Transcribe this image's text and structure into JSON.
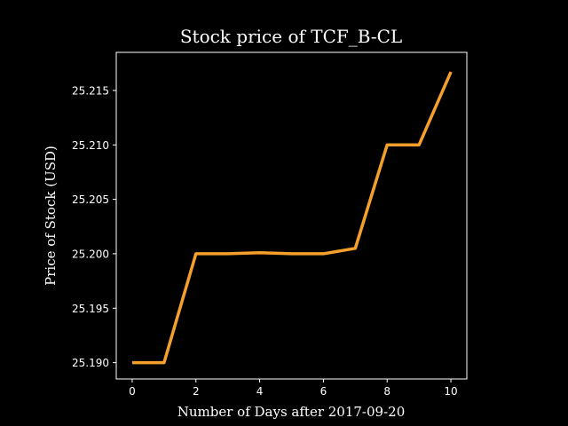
{
  "colors": {
    "background": "#000000",
    "axes": "#ffffff",
    "line": "#f5a02a",
    "text": "#ffffff"
  },
  "chart_data": {
    "type": "line",
    "title": "Stock price of TCF_B-CL",
    "xlabel": "Number of Days after 2017-09-20",
    "ylabel": "Price of Stock (USD)",
    "xlim": [
      -0.5,
      10.5
    ],
    "ylim": [
      25.1885,
      25.2185
    ],
    "xticks": [
      0,
      2,
      4,
      6,
      8,
      10
    ],
    "xtick_labels": [
      "0",
      "2",
      "4",
      "6",
      "8",
      "10"
    ],
    "yticks": [
      25.19,
      25.195,
      25.2,
      25.205,
      25.21,
      25.215
    ],
    "ytick_labels": [
      "25.190",
      "25.195",
      "25.200",
      "25.205",
      "25.210",
      "25.215"
    ],
    "grid": false,
    "series": [
      {
        "x": [
          0,
          1,
          2,
          3,
          4,
          5,
          6,
          7,
          8,
          9,
          10
        ],
        "values": [
          25.19,
          25.19,
          25.2,
          25.2,
          25.2001,
          25.2,
          25.2,
          25.2005,
          25.21,
          25.21,
          25.2167
        ]
      }
    ]
  }
}
